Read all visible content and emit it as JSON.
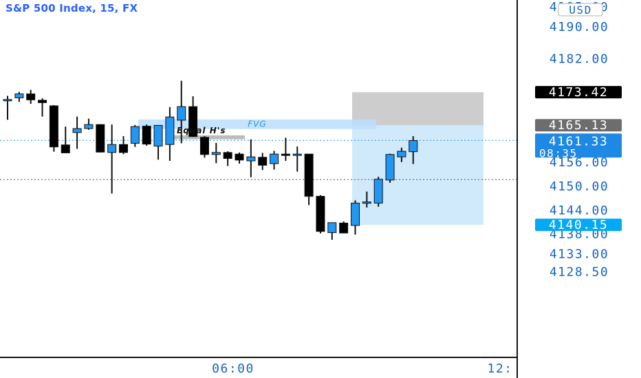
{
  "header": {
    "title": "S&P 500 Index, 15, FX",
    "currency": "USD"
  },
  "colors": {
    "bull": "#2196f3",
    "bear": "#000000",
    "fvg_fill": "#bbdefb",
    "fvg_text": "#2196f3",
    "stop_zone": "#c8c8c8",
    "target_zone": "#cde8fb",
    "axis_text": "#1565c0",
    "last_price_badge": "#1e88e5",
    "stop_badge": "#000000",
    "entry_badge": "#6d6d6d",
    "target_badge": "#03a9f4"
  },
  "chart_data": {
    "type": "candlestick",
    "y_axis": {
      "ticks": [
        "4195.00",
        "4190.00",
        "4182.00",
        "4156.00",
        "4150.00",
        "4144.00",
        "4138.00",
        "4133.00",
        "4128.50"
      ]
    },
    "x_axis": {
      "ticks": [
        "06:00",
        "12:"
      ]
    },
    "price_labels": {
      "stop": "4173.42",
      "entry": "4165.13",
      "last_price": "4161.33",
      "countdown": "08:35",
      "target": "4140.15"
    },
    "zones": {
      "fvg": {
        "label": "FVG",
        "top": 4166.6,
        "bottom": 4164.2
      },
      "equal_highs": {
        "label": "Equal H's",
        "top": 4162.6,
        "bottom": 4161.6
      },
      "stop_box": {
        "top": 4173.42,
        "bottom": 4165.13
      },
      "target_box": {
        "top": 4165.13,
        "bottom": 4140.15
      }
    },
    "dotted_levels": [
      4161.33,
      4151.5
    ],
    "candles": [
      {
        "o": 4171.6,
        "h": 4172.5,
        "l": 4166.5,
        "c": 4171.6
      },
      {
        "o": 4172.0,
        "h": 4173.5,
        "l": 4171.0,
        "c": 4173.0
      },
      {
        "o": 4173.0,
        "h": 4174.0,
        "l": 4170.5,
        "c": 4171.5
      },
      {
        "o": 4171.4,
        "h": 4171.9,
        "l": 4167.3,
        "c": 4170.8
      },
      {
        "o": 4170.0,
        "h": 4170.2,
        "l": 4158.5,
        "c": 4159.7
      },
      {
        "o": 4160.2,
        "h": 4164.8,
        "l": 4158.4,
        "c": 4158.2
      },
      {
        "o": 4163.3,
        "h": 4167.3,
        "l": 4159.2,
        "c": 4164.3
      },
      {
        "o": 4164.3,
        "h": 4166.8,
        "l": 4164.0,
        "c": 4165.3
      },
      {
        "o": 4165.3,
        "h": 4165.4,
        "l": 4158.3,
        "c": 4158.4
      },
      {
        "o": 4158.3,
        "h": 4165.3,
        "l": 4148.0,
        "c": 4160.3
      },
      {
        "o": 4160.3,
        "h": 4162.4,
        "l": 4157.9,
        "c": 4158.3
      },
      {
        "o": 4160.6,
        "h": 4165.2,
        "l": 4159.7,
        "c": 4164.8
      },
      {
        "o": 4164.9,
        "h": 4165.3,
        "l": 4160.0,
        "c": 4160.4
      },
      {
        "o": 4159.9,
        "h": 4164.8,
        "l": 4156.5,
        "c": 4165.1
      },
      {
        "o": 4160.3,
        "h": 4169.7,
        "l": 4156.2,
        "c": 4167.2
      },
      {
        "o": 4166.4,
        "h": 4176.3,
        "l": 4160.6,
        "c": 4169.8
      },
      {
        "o": 4169.8,
        "h": 4172.4,
        "l": 4162.2,
        "c": 4162.3
      },
      {
        "o": 4162.1,
        "h": 4162.4,
        "l": 4157.0,
        "c": 4157.8
      },
      {
        "o": 4157.8,
        "h": 4160.7,
        "l": 4155.6,
        "c": 4158.3
      },
      {
        "o": 4158.3,
        "h": 4158.6,
        "l": 4154.9,
        "c": 4156.8
      },
      {
        "o": 4157.9,
        "h": 4158.3,
        "l": 4155.5,
        "c": 4156.4
      },
      {
        "o": 4156.2,
        "h": 4161.6,
        "l": 4152.1,
        "c": 4157.2
      },
      {
        "o": 4157.1,
        "h": 4158.2,
        "l": 4153.9,
        "c": 4155.1
      },
      {
        "o": 4155.5,
        "h": 4158.7,
        "l": 4154.0,
        "c": 4157.9
      },
      {
        "o": 4157.9,
        "h": 4162.0,
        "l": 4156.2,
        "c": 4157.8
      },
      {
        "o": 4157.8,
        "h": 4159.8,
        "l": 4153.5,
        "c": 4157.9
      },
      {
        "o": 4157.9,
        "h": 4157.9,
        "l": 4145.1,
        "c": 4147.3
      },
      {
        "o": 4147.3,
        "h": 4147.6,
        "l": 4138.0,
        "c": 4138.5
      },
      {
        "o": 4138.2,
        "h": 4140.6,
        "l": 4136.4,
        "c": 4140.7
      },
      {
        "o": 4140.6,
        "h": 4141.0,
        "l": 4138.0,
        "c": 4138.1
      },
      {
        "o": 4140.0,
        "h": 4146.3,
        "l": 4137.7,
        "c": 4145.6
      },
      {
        "o": 4145.7,
        "h": 4148.5,
        "l": 4144.5,
        "c": 4145.9
      },
      {
        "o": 4145.6,
        "h": 4152.2,
        "l": 4144.7,
        "c": 4151.6
      },
      {
        "o": 4151.4,
        "h": 4158.0,
        "l": 4150.7,
        "c": 4157.8
      },
      {
        "o": 4157.2,
        "h": 4159.5,
        "l": 4155.9,
        "c": 4158.6
      },
      {
        "o": 4158.5,
        "h": 4162.4,
        "l": 4155.4,
        "c": 4161.3
      }
    ]
  }
}
